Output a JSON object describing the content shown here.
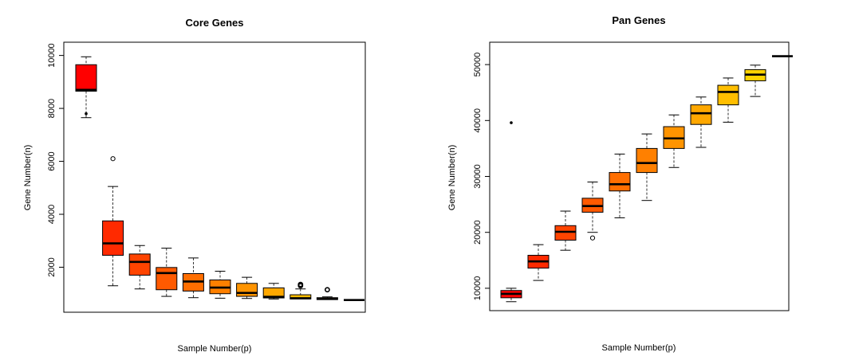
{
  "chart_data": [
    {
      "type": "boxplot",
      "title": "Core Genes",
      "xlabel": "Sample Number(p)",
      "ylabel": "Gene Number(n)",
      "ylim": [
        300,
        10500
      ],
      "yticks": [
        "2000",
        "4000",
        "6000",
        "8000",
        "10000"
      ],
      "ytick_values": [
        2000,
        4000,
        6000,
        8000,
        10000
      ],
      "grid": false,
      "boxes": [
        {
          "sample": 1,
          "color": "#ff0000",
          "min": 7650,
          "q1": 8650,
          "median": 8700,
          "q3": 9650,
          "max": 9950,
          "outliers": [
            7800
          ]
        },
        {
          "sample": 2,
          "color": "#ff2a00",
          "min": 1300,
          "q1": 2450,
          "median": 2900,
          "q3": 3750,
          "max": 5050,
          "outliers": [
            6100
          ]
        },
        {
          "sample": 3,
          "color": "#ff4400",
          "min": 1180,
          "q1": 1700,
          "median": 2200,
          "q3": 2500,
          "max": 2820,
          "outliers": []
        },
        {
          "sample": 4,
          "color": "#ff5a00",
          "min": 900,
          "q1": 1150,
          "median": 1780,
          "q3": 1990,
          "max": 2720,
          "outliers": []
        },
        {
          "sample": 5,
          "color": "#ff6e00",
          "min": 850,
          "q1": 1100,
          "median": 1460,
          "q3": 1760,
          "max": 2350,
          "outliers": []
        },
        {
          "sample": 6,
          "color": "#ff8000",
          "min": 830,
          "q1": 1000,
          "median": 1230,
          "q3": 1520,
          "max": 1850,
          "outliers": []
        },
        {
          "sample": 7,
          "color": "#ff9400",
          "min": 820,
          "q1": 900,
          "median": 1030,
          "q3": 1390,
          "max": 1620,
          "outliers": []
        },
        {
          "sample": 8,
          "color": "#ffa800",
          "min": 800,
          "q1": 840,
          "median": 880,
          "q3": 1220,
          "max": 1390,
          "outliers": []
        },
        {
          "sample": 9,
          "color": "#ffbe00",
          "min": 790,
          "q1": 800,
          "median": 830,
          "q3": 960,
          "max": 1180,
          "outliers": [
            1300,
            1350
          ]
        },
        {
          "sample": 10,
          "color": "#ffd400",
          "min": 780,
          "q1": 780,
          "median": 800,
          "q3": 850,
          "max": 880,
          "outliers": [
            1150
          ]
        },
        {
          "sample": 11,
          "color": "#ffeb00",
          "min": 760,
          "q1": 760,
          "median": 760,
          "q3": 760,
          "max": 760,
          "outliers": []
        }
      ]
    },
    {
      "type": "boxplot",
      "title": "Pan Genes",
      "xlabel": "Sample Number(p)",
      "ylabel": "Gene Number(n)",
      "ylim": [
        6000,
        54000
      ],
      "yticks": [
        "10000",
        "20000",
        "30000",
        "40000",
        "50000"
      ],
      "ytick_values": [
        10000,
        20000,
        30000,
        40000,
        50000
      ],
      "grid": false,
      "boxes": [
        {
          "sample": 1,
          "color": "#ff0000",
          "min": 7600,
          "q1": 8300,
          "median": 9000,
          "q3": 9600,
          "max": 10000,
          "outliers": [
            39600
          ]
        },
        {
          "sample": 2,
          "color": "#ff2a00",
          "min": 11400,
          "q1": 13600,
          "median": 14800,
          "q3": 15900,
          "max": 17800,
          "outliers": []
        },
        {
          "sample": 3,
          "color": "#ff4400",
          "min": 16800,
          "q1": 18600,
          "median": 20100,
          "q3": 21200,
          "max": 23800,
          "outliers": []
        },
        {
          "sample": 4,
          "color": "#ff5a00",
          "min": 20000,
          "q1": 23600,
          "median": 24700,
          "q3": 26100,
          "max": 29000,
          "outliers": [
            19000
          ]
        },
        {
          "sample": 5,
          "color": "#ff6e00",
          "min": 22600,
          "q1": 27400,
          "median": 28600,
          "q3": 30700,
          "max": 34000,
          "outliers": []
        },
        {
          "sample": 6,
          "color": "#ff8000",
          "min": 25700,
          "q1": 30700,
          "median": 32400,
          "q3": 35000,
          "max": 37600,
          "outliers": []
        },
        {
          "sample": 7,
          "color": "#ff9400",
          "min": 31600,
          "q1": 35000,
          "median": 36800,
          "q3": 38900,
          "max": 41000,
          "outliers": []
        },
        {
          "sample": 8,
          "color": "#ffa800",
          "min": 35200,
          "q1": 39300,
          "median": 41300,
          "q3": 42800,
          "max": 44200,
          "outliers": []
        },
        {
          "sample": 9,
          "color": "#ffbe00",
          "min": 39700,
          "q1": 42800,
          "median": 45100,
          "q3": 46300,
          "max": 47600,
          "outliers": []
        },
        {
          "sample": 10,
          "color": "#ffd400",
          "min": 44300,
          "q1": 47100,
          "median": 48200,
          "q3": 49100,
          "max": 49900,
          "outliers": []
        },
        {
          "sample": 11,
          "color": "#ffeb00",
          "min": 51500,
          "q1": 51500,
          "median": 51500,
          "q3": 51500,
          "max": 51500,
          "outliers": []
        }
      ]
    }
  ]
}
